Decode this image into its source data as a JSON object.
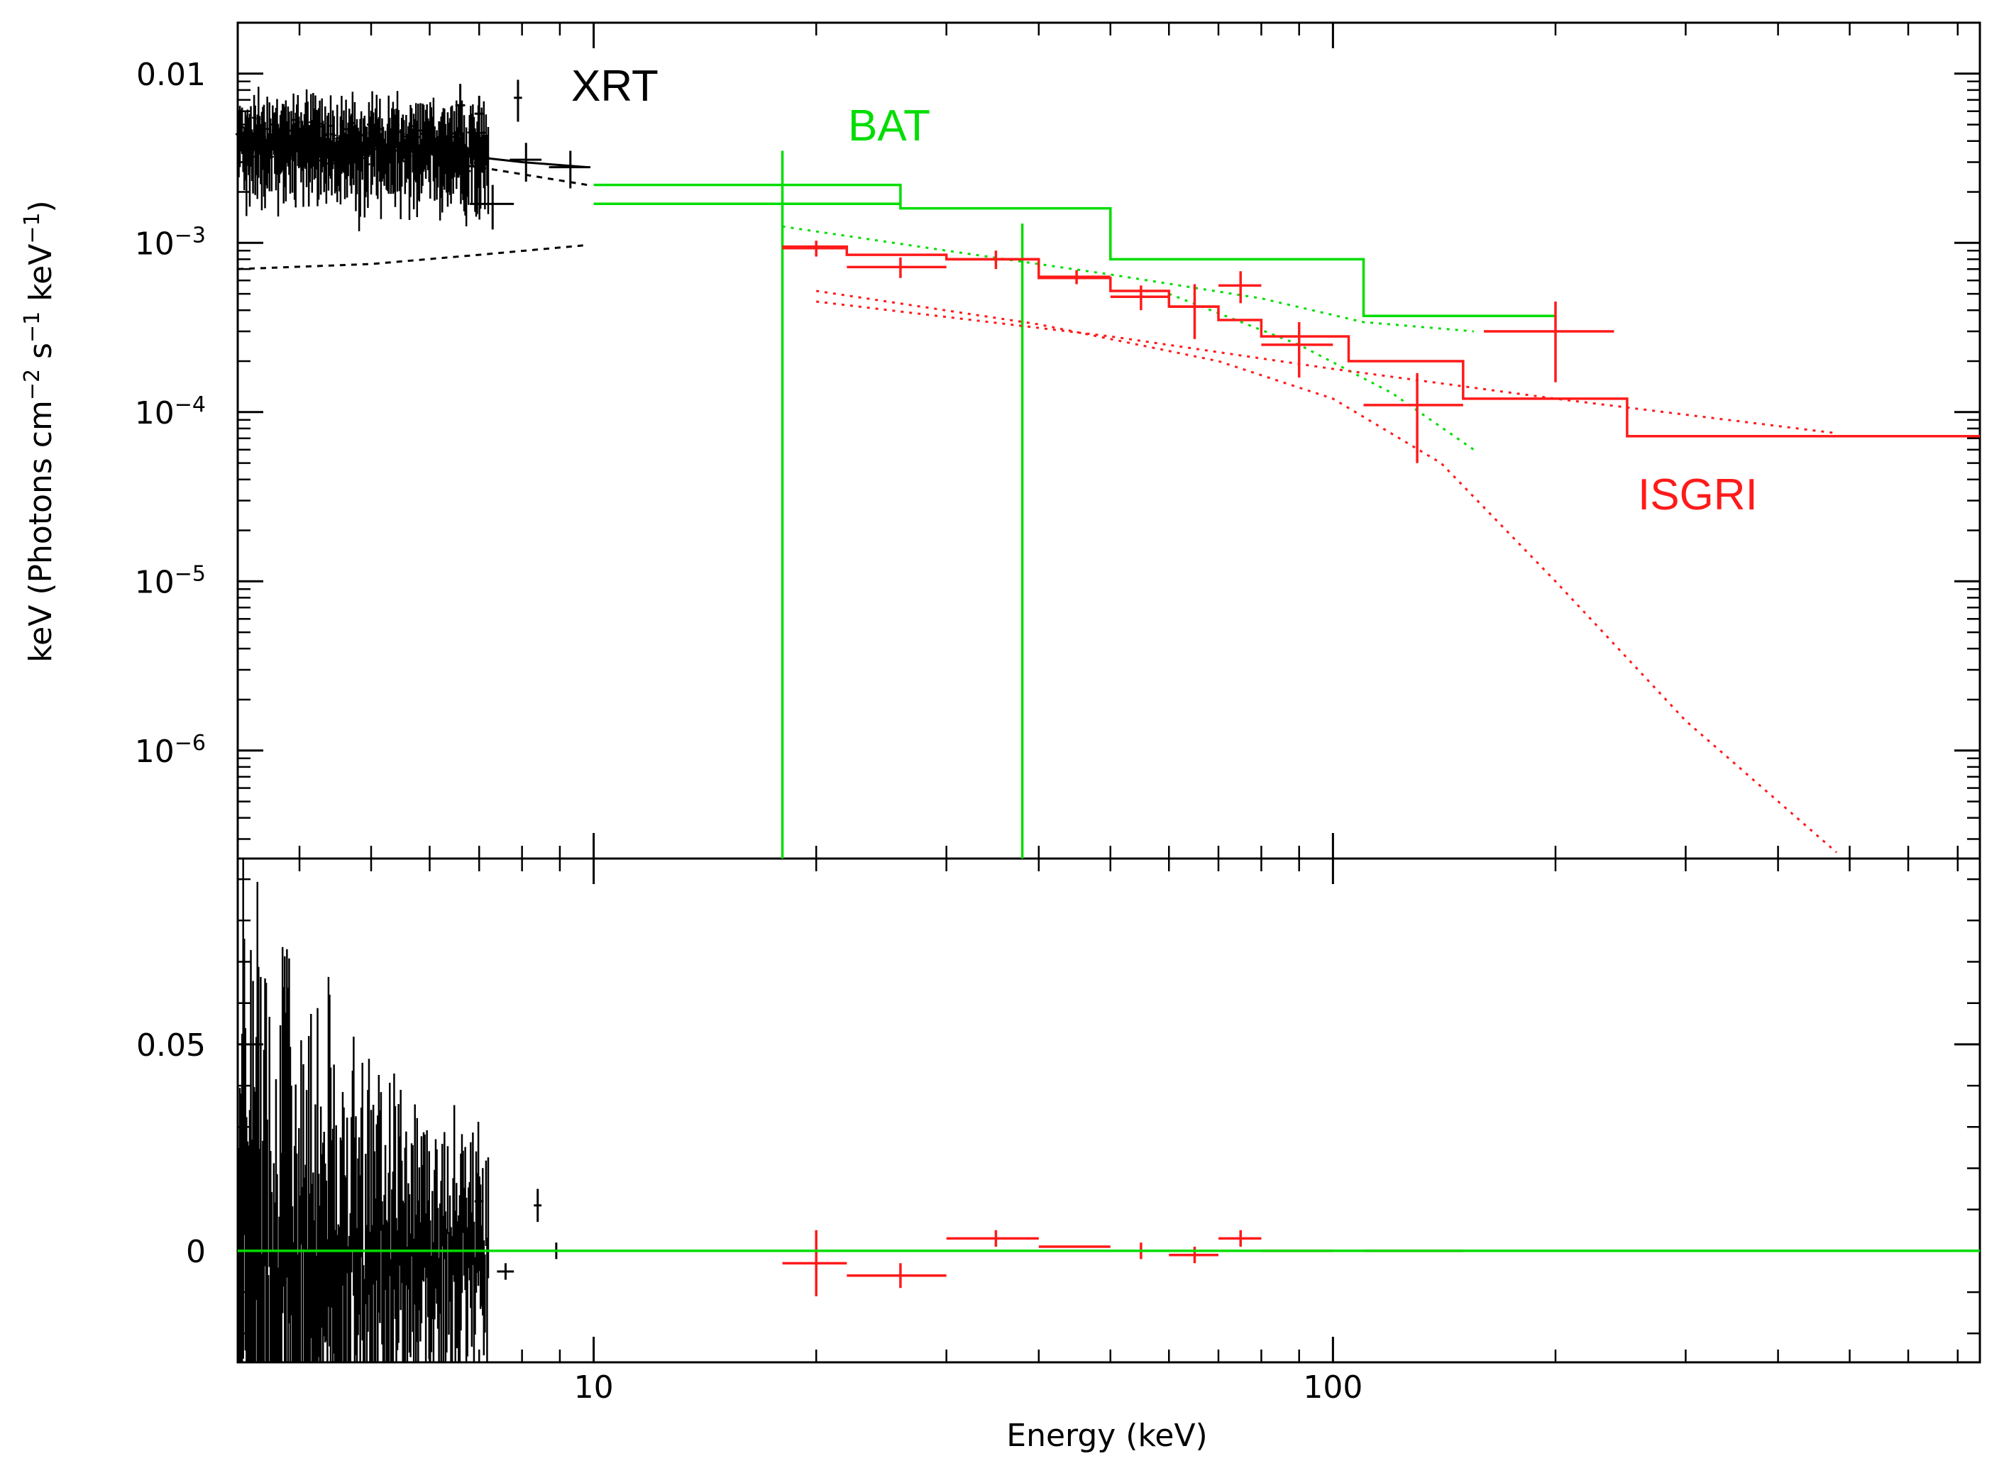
{
  "chart_data": {
    "type": "scatter",
    "xlabel": "Energy (keV)",
    "ylabel": "keV (Photons cm",
    "ylabel_sup1": "−2",
    "ylabel_mid": " s",
    "ylabel_sup2": "−1",
    "ylabel_mid2": " keV",
    "ylabel_sup3": "−1",
    "ylabel_end": ")",
    "x_scale": "log",
    "xlim": [
      3.3,
      750
    ],
    "x_tick_labels": [
      "10",
      "100"
    ],
    "top_panel": {
      "y_scale": "log",
      "ylim": [
        2.3e-07,
        0.02
      ],
      "y_tick_labels": [
        {
          "value": 0.01,
          "base": "0.01",
          "exp": ""
        },
        {
          "value": 0.001,
          "base": "10",
          "exp": "−3"
        },
        {
          "value": 0.0001,
          "base": "10",
          "exp": "−4"
        },
        {
          "value": 1e-05,
          "base": "10",
          "exp": "−5"
        },
        {
          "value": 1e-06,
          "base": "10",
          "exp": "−6"
        }
      ]
    },
    "bottom_panel": {
      "y_scale": "linear",
      "ylim": [
        -0.027,
        0.095
      ],
      "y_tick_labels": [
        {
          "value": 0.05,
          "label": "0.05"
        },
        {
          "value": 0,
          "label": "0"
        }
      ]
    },
    "labels": {
      "xrt": "XRT",
      "bat": "BAT",
      "isgri": "ISGRI"
    },
    "colors": {
      "xrt": "#000000",
      "bat": "#00dd00",
      "isgri": "#ff1a1a"
    },
    "series": [
      {
        "name": "XRT",
        "key": "xrt",
        "model_total": [
          [
            3.3,
            0.0042
          ],
          [
            4.0,
            0.0039
          ],
          [
            5.0,
            0.0036
          ],
          [
            6.0,
            0.0034
          ],
          [
            7.0,
            0.0032
          ],
          [
            8.0,
            0.003
          ],
          [
            9.8,
            0.0028
          ]
        ],
        "model_component": [
          [
            3.3,
            0.0007
          ],
          [
            5.0,
            0.00075
          ],
          [
            7.0,
            0.00085
          ],
          [
            9.8,
            0.00097
          ]
        ],
        "model_component2": [
          [
            5.5,
            0.0032
          ],
          [
            7.0,
            0.0028
          ],
          [
            9.8,
            0.0022
          ]
        ],
        "points": [
          [
            7.3,
            0.0017,
            0.5,
            0.0005
          ],
          [
            8.1,
            0.0031,
            0.4,
            0.0008
          ],
          [
            9.3,
            0.0028,
            0.6,
            0.0007
          ],
          [
            7.0,
            0.0058,
            0.1,
            0.0016
          ],
          [
            7.9,
            0.0072,
            0.1,
            0.002
          ],
          [
            6.6,
            0.0065,
            0.1,
            0.0022
          ]
        ],
        "residual_points": [
          [
            7.0,
            0.012,
            0.1,
            0.006
          ],
          [
            7.6,
            -0.005,
            0.2,
            0.002
          ],
          [
            8.4,
            0.011,
            0.1,
            0.004
          ],
          [
            8.9,
            0.0,
            0.1,
            0.002
          ]
        ]
      },
      {
        "name": "BAT",
        "key": "bat",
        "model_step": [
          [
            10,
            17.7,
            0.0022
          ],
          [
            17.7,
            26,
            0.0022
          ],
          [
            26,
            50,
            0.0016
          ],
          [
            50,
            110,
            0.0008
          ],
          [
            110,
            200,
            0.00037
          ]
        ],
        "data_step": [
          [
            10,
            17.7,
            0.0017
          ],
          [
            17.7,
            26,
            0.0017
          ]
        ],
        "points": [
          [
            18,
            0.0011,
            0.0,
            0.0
          ],
          [
            38,
            0.0011,
            0.0,
            0.0
          ]
        ],
        "model_dotted": [
          [
            18,
            0.00125
          ],
          [
            30,
            0.0009
          ],
          [
            50,
            0.00065
          ],
          [
            80,
            0.00047
          ],
          [
            110,
            0.00034
          ],
          [
            155,
            0.0003
          ]
        ],
        "model_dotted2": [
          [
            60,
            0.0005
          ],
          [
            90,
            0.00025
          ],
          [
            120,
            0.00013
          ],
          [
            155,
            6e-05
          ]
        ]
      },
      {
        "name": "ISGRI",
        "key": "isgri",
        "model_step": [
          [
            18,
            22,
            0.00095
          ],
          [
            22,
            30,
            0.00085
          ],
          [
            30,
            40,
            0.0008
          ],
          [
            40,
            50,
            0.00062
          ],
          [
            50,
            60,
            0.00052
          ],
          [
            60,
            70,
            0.00042
          ],
          [
            70,
            80,
            0.00035
          ],
          [
            80,
            105,
            0.00028
          ],
          [
            105,
            150,
            0.0002
          ],
          [
            150,
            250,
            0.00012
          ],
          [
            250,
            750,
            7.2e-05
          ]
        ],
        "points": [
          [
            20,
            0.00093,
            2,
            0.0001
          ],
          [
            26,
            0.00072,
            4,
            0.0001
          ],
          [
            35,
            0.0008,
            5,
            0.0001
          ],
          [
            45,
            0.00063,
            5,
            6e-05
          ],
          [
            55,
            0.00048,
            5,
            8e-05
          ],
          [
            65,
            0.00042,
            5,
            0.00015
          ],
          [
            75,
            0.00056,
            5,
            0.00012
          ],
          [
            90,
            0.00025,
            10,
            9e-05
          ],
          [
            130,
            0.00011,
            20,
            6e-05
          ],
          [
            200,
            0.0003,
            40,
            0.00015
          ]
        ],
        "model_powerlaw": [
          [
            20,
            0.00045
          ],
          [
            50,
            0.00028
          ],
          [
            100,
            0.00018
          ],
          [
            200,
            0.00012
          ],
          [
            480,
            7.5e-05
          ]
        ],
        "model_cutoff": [
          [
            20,
            0.00052
          ],
          [
            40,
            0.00033
          ],
          [
            70,
            0.0002
          ],
          [
            100,
            0.00012
          ],
          [
            140,
            5e-05
          ],
          [
            200,
            1e-05
          ],
          [
            300,
            1.5e-06
          ],
          [
            480,
            2.5e-07
          ]
        ],
        "residual_points": [
          [
            20,
            -0.003,
            2,
            0.008
          ],
          [
            26,
            -0.006,
            4,
            0.003
          ],
          [
            35,
            0.003,
            5,
            0.002
          ],
          [
            45,
            0.001,
            5,
            0.0
          ],
          [
            55,
            0.0,
            0,
            0.002
          ],
          [
            65,
            -0.001,
            5,
            0.002
          ],
          [
            75,
            0.003,
            5,
            0.002
          ],
          [
            90,
            0.0,
            10,
            0.0
          ],
          [
            130,
            0.0,
            20,
            0.0
          ]
        ]
      }
    ]
  }
}
